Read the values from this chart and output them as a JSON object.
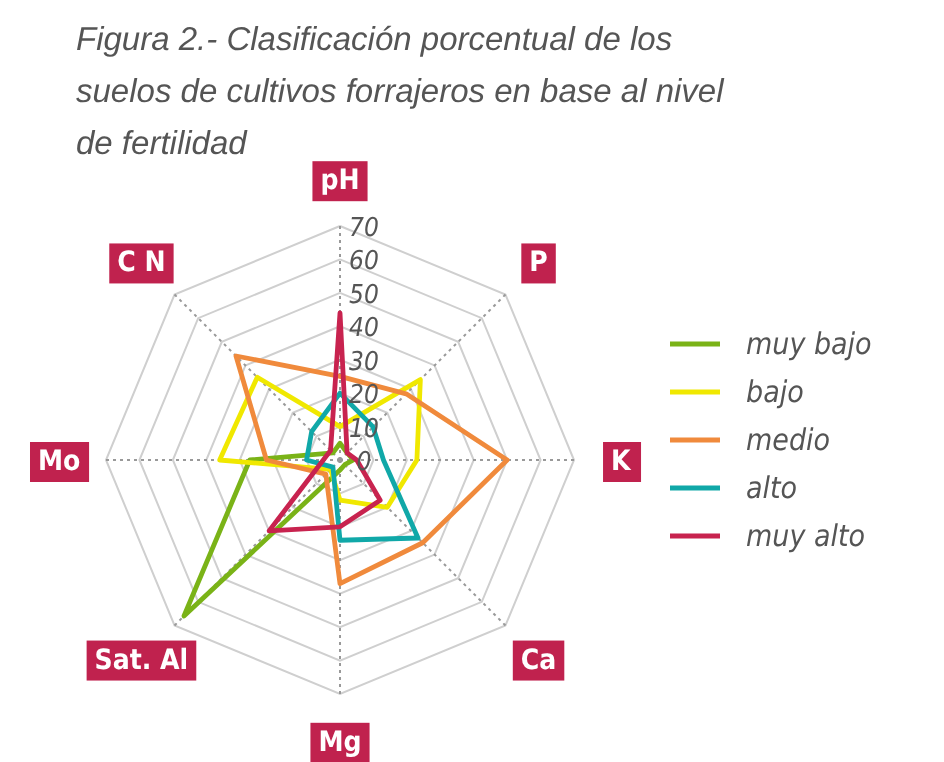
{
  "chart_data": {
    "type": "radar",
    "title": "Figura 2.- Clasificación porcentual de los suelos de cultivos forrajeros en base al nivel de fertilidad",
    "categories": [
      "pH",
      "P",
      "K",
      "Ca",
      "Mg",
      "Sat. Al",
      "Mo",
      "C N"
    ],
    "ylim": [
      0,
      70
    ],
    "yticks": [
      0,
      10,
      20,
      30,
      40,
      50,
      60,
      70
    ],
    "legend": "right",
    "series": [
      {
        "name": "muy bajo",
        "color": "#7ab317",
        "values": [
          5,
          3,
          4,
          2,
          3,
          66,
          27,
          3
        ]
      },
      {
        "name": "bajo",
        "color": "#f0e800",
        "values": [
          10,
          34,
          23,
          20,
          12,
          4,
          36,
          35
        ]
      },
      {
        "name": "medio",
        "color": "#f08a3c",
        "values": [
          25,
          28,
          50,
          35,
          37,
          6,
          22,
          44
        ]
      },
      {
        "name": "alto",
        "color": "#10a8a8",
        "values": [
          20,
          14,
          13,
          33,
          24,
          3,
          10,
          12
        ]
      },
      {
        "name": "muy alto",
        "color": "#c8234f",
        "values": [
          44,
          3,
          5,
          17,
          20,
          30,
          5,
          4
        ]
      }
    ]
  }
}
